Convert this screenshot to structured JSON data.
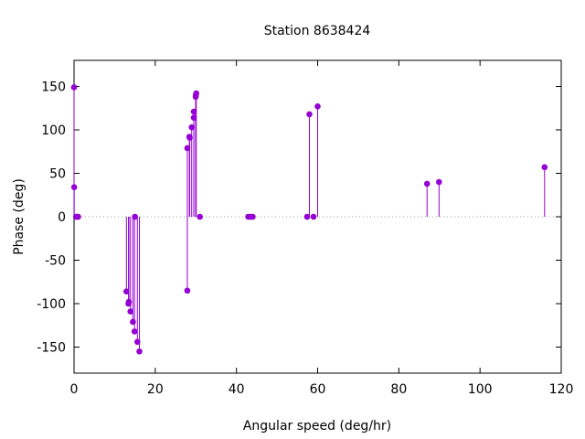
{
  "chart_data": {
    "type": "scatter",
    "style": "impulses-with-points",
    "title": "Station 8638424",
    "xlabel": "Angular speed (deg/hr)",
    "ylabel": "Phase (deg)",
    "xlim": [
      0,
      120
    ],
    "ylim": [
      -180,
      180
    ],
    "xticks": [
      0,
      20,
      40,
      60,
      80,
      100,
      120
    ],
    "yticks": [
      -150,
      -100,
      -50,
      0,
      50,
      100,
      150
    ],
    "grid": false,
    "zero_line": "dotted",
    "color": "#9400d3",
    "series": [
      {
        "points": [
          {
            "x": 0.0,
            "y": 149
          },
          {
            "x": 0.04,
            "y": 34
          },
          {
            "x": 0.5,
            "y": 0
          },
          {
            "x": 0.8,
            "y": 0
          },
          {
            "x": 1.0,
            "y": 0
          },
          {
            "x": 12.9,
            "y": -86
          },
          {
            "x": 13.4,
            "y": -100
          },
          {
            "x": 13.5,
            "y": -98
          },
          {
            "x": 13.9,
            "y": -109
          },
          {
            "x": 14.5,
            "y": -121
          },
          {
            "x": 14.9,
            "y": -132
          },
          {
            "x": 15.0,
            "y": 0
          },
          {
            "x": 15.6,
            "y": -144
          },
          {
            "x": 16.1,
            "y": -155
          },
          {
            "x": 27.9,
            "y": -85
          },
          {
            "x": 27.9,
            "y": 79
          },
          {
            "x": 28.4,
            "y": 92
          },
          {
            "x": 28.5,
            "y": 91
          },
          {
            "x": 28.98,
            "y": 103
          },
          {
            "x": 29.5,
            "y": 114
          },
          {
            "x": 29.5,
            "y": 121
          },
          {
            "x": 29.96,
            "y": 138
          },
          {
            "x": 30.0,
            "y": 140
          },
          {
            "x": 30.1,
            "y": 142
          },
          {
            "x": 31.0,
            "y": 0
          },
          {
            "x": 42.9,
            "y": 0
          },
          {
            "x": 43.5,
            "y": 0
          },
          {
            "x": 44.0,
            "y": 0
          },
          {
            "x": 57.4,
            "y": 0
          },
          {
            "x": 57.97,
            "y": 118
          },
          {
            "x": 58.98,
            "y": 0
          },
          {
            "x": 60.0,
            "y": 127
          },
          {
            "x": 86.95,
            "y": 38
          },
          {
            "x": 89.9,
            "y": 40
          },
          {
            "x": 115.9,
            "y": 57
          }
        ]
      }
    ]
  }
}
